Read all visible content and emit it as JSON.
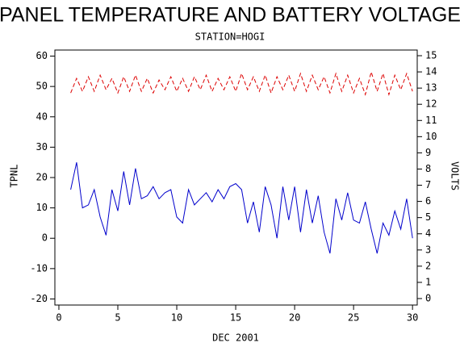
{
  "chart_data": {
    "type": "line",
    "title": "PANEL TEMPERATURE AND BATTERY VOLTAGE",
    "subtitle": "STATION=HOGI",
    "x_label": "DEC 2001",
    "y_label": "TPNL",
    "y2_label": "VOLTS",
    "x": [
      1,
      1.5,
      2,
      2.5,
      3,
      3.5,
      4,
      4.5,
      5,
      5.5,
      6,
      6.5,
      7,
      7.5,
      8,
      8.5,
      9,
      9.5,
      10,
      10.5,
      11,
      11.5,
      12,
      12.5,
      13,
      13.5,
      14,
      14.5,
      15,
      15.5,
      16,
      16.5,
      17,
      17.5,
      18,
      18.5,
      19,
      19.5,
      20,
      20.5,
      21,
      21.5,
      22,
      22.5,
      23,
      23.5,
      24,
      24.5,
      25,
      25.5,
      26,
      26.5,
      27,
      27.5,
      28,
      28.5,
      29,
      29.5,
      30
    ],
    "series": [
      {
        "color": "#0000cc",
        "axis": "y",
        "values": [
          16,
          25,
          10,
          11,
          16,
          7,
          1,
          16,
          9,
          22,
          11,
          23,
          13,
          14,
          17,
          13,
          15,
          16,
          7,
          5,
          16,
          11,
          13,
          15,
          12,
          16,
          13,
          17,
          18,
          16,
          5,
          12,
          2,
          17,
          11,
          0,
          17,
          6,
          17,
          2,
          16,
          5,
          14,
          2,
          -5,
          13,
          6,
          15,
          6,
          5,
          12,
          3,
          -5,
          5,
          1,
          9,
          3,
          13,
          0
        ]
      },
      {
        "color": "#dd0000",
        "axis": "y2",
        "dashed": true,
        "values": [
          12.7,
          13.6,
          12.8,
          13.7,
          12.8,
          13.8,
          12.9,
          13.6,
          12.7,
          13.7,
          12.8,
          13.8,
          12.8,
          13.6,
          12.7,
          13.5,
          12.9,
          13.7,
          12.8,
          13.6,
          12.8,
          13.7,
          12.9,
          13.8,
          12.8,
          13.6,
          12.9,
          13.7,
          12.8,
          13.9,
          12.9,
          13.7,
          12.8,
          13.8,
          12.7,
          13.7,
          12.9,
          13.8,
          12.8,
          13.9,
          12.8,
          13.8,
          12.9,
          13.7,
          12.7,
          13.9,
          12.8,
          13.8,
          12.7,
          13.6,
          12.6,
          14.0,
          12.8,
          13.9,
          12.6,
          13.8,
          12.9,
          13.9,
          12.8
        ]
      }
    ],
    "xlim": [
      -0.34,
      30.4
    ],
    "xticks": [
      0,
      5,
      10,
      15,
      20,
      25,
      30
    ],
    "ylim": [
      -22,
      62
    ],
    "yticks": [
      -20,
      -10,
      0,
      10,
      20,
      30,
      40,
      50,
      60
    ],
    "y2lim": [
      -0.4,
      15.35
    ],
    "y2ticks": [
      0,
      1,
      2,
      3,
      4,
      5,
      6,
      7,
      8,
      9,
      10,
      11,
      12,
      13,
      14,
      15
    ]
  }
}
